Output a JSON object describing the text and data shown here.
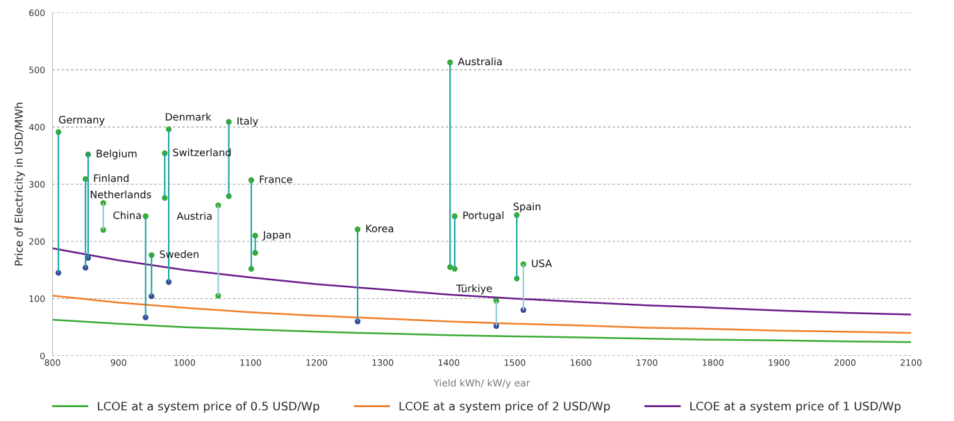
{
  "chart_data": {
    "type": "scatter",
    "xlabel": "Yield kWh/ kW/y ear",
    "ylabel": "Price of Electricity in USD/MWh",
    "xlim": [
      800,
      2100
    ],
    "xticks": [
      800,
      900,
      1000,
      1100,
      1200,
      1300,
      1400,
      1500,
      1600,
      1700,
      1800,
      1900,
      2000,
      2100
    ],
    "ylim": [
      0,
      600
    ],
    "yticks": [
      0,
      100,
      200,
      300,
      400,
      500,
      600
    ],
    "grid": "y",
    "legend": "bottom",
    "series": [
      {
        "name": "LCOE at a system price of 0.5 USD/Wp",
        "type": "line",
        "color": "#3aaa35",
        "x": [
          800,
          900,
          1000,
          1100,
          1200,
          1300,
          1400,
          1500,
          1600,
          1700,
          1800,
          1900,
          2000,
          2100
        ],
        "values": [
          63,
          56,
          50,
          46,
          42,
          39,
          36,
          34,
          32,
          30,
          28,
          27,
          25,
          24
        ]
      },
      {
        "name": "LCOE at a system price of 2 USD/Wp",
        "type": "line",
        "color": "#f07f2a",
        "x": [
          800,
          900,
          1000,
          1100,
          1200,
          1300,
          1400,
          1500,
          1600,
          1700,
          1800,
          1900,
          2000,
          2100
        ],
        "values": [
          105,
          93,
          84,
          76,
          70,
          65,
          60,
          56,
          53,
          49,
          47,
          44,
          42,
          40
        ]
      },
      {
        "name": "LCOE at a system price of 1 USD/Wp",
        "type": "line",
        "color": "#6a1b8a",
        "x": [
          800,
          900,
          1000,
          1100,
          1200,
          1300,
          1400,
          1500,
          1600,
          1700,
          1800,
          1900,
          2000,
          2100
        ],
        "values": [
          188,
          167,
          150,
          137,
          125,
          116,
          107,
          100,
          94,
          88,
          84,
          79,
          75,
          72
        ]
      },
      {
        "type": "bar",
        "x": [
          809,
          850,
          854,
          877,
          941,
          950,
          970,
          976,
          1051,
          1067,
          1101,
          1107,
          1262,
          1402,
          1409,
          1472,
          1503,
          1513
        ],
        "base": [
          145,
          154,
          171,
          220,
          67,
          104,
          276,
          129,
          105,
          279,
          152,
          180,
          60,
          155,
          152,
          52,
          135,
          80
        ],
        "values": [
          246,
          155,
          181,
          47,
          177,
          72,
          78,
          267,
          158,
          130,
          155,
          30,
          161,
          358,
          92,
          44,
          111,
          80
        ],
        "colors": [
          "#1aa5a0",
          "#1aa5a0",
          "#1aa5a0",
          "#8ccbe0",
          "#1aa5a0",
          "#1aa5a0",
          "#1aa5a0",
          "#1aa5a0",
          "#8ccbe0",
          "#1aa5a0",
          "#1aa5a0",
          "#1aa5a0",
          "#1aa5a0",
          "#1aa5a0",
          "#1aa5a0",
          "#8ccbe0",
          "#1aa5a0",
          "#8ccbe0"
        ]
      },
      {
        "marker": "circle",
        "x": [
          809,
          850,
          854,
          877,
          941,
          950,
          970,
          976,
          1051,
          1067,
          1101,
          1107,
          1262,
          1402,
          1409,
          1472,
          1503,
          1513
        ],
        "values": [
          391,
          309,
          352,
          267,
          244,
          176,
          354,
          396,
          263,
          409,
          307,
          210,
          221,
          513,
          244,
          96,
          246,
          160
        ],
        "colors": [
          "#3aaa35",
          "#3aaa35",
          "#3a9a55",
          "#3aaa35",
          "#3aaa35",
          "#3aaa35",
          "#3aaa35",
          "#3aaa35",
          "#3aaa35",
          "#3aaa35",
          "#3aaa35",
          "#3aaa35",
          "#3aaa35",
          "#3aaa35",
          "#3aaa35",
          "#3aaa35",
          "#3aaa35",
          "#3aaa35"
        ]
      },
      {
        "marker": "circle",
        "x": [
          809,
          850,
          854,
          877,
          941,
          950,
          970,
          976,
          1051,
          1067,
          1101,
          1107,
          1262,
          1402,
          1409,
          1472,
          1503,
          1513
        ],
        "values": [
          145,
          154,
          171,
          220,
          67,
          104,
          276,
          129,
          105,
          279,
          152,
          180,
          60,
          155,
          152,
          52,
          135,
          80
        ],
        "colors": [
          "#3b4a9a",
          "#3b4a9a",
          "#3b4a9a",
          "#3aaa35",
          "#3b4a9a",
          "#3b4a9a",
          "#3aaa35",
          "#3b4a9a",
          "#3aaa35",
          "#3aaa35",
          "#3aaa35",
          "#3aaa35",
          "#3b4a9a",
          "#3aaa35",
          "#3aaa35",
          "#3b4a9a",
          "#3aaa35",
          "#3b4a9a"
        ]
      }
    ],
    "annotations": [
      {
        "text": "Germany",
        "x": 809,
        "y": 391
      },
      {
        "text": "Finland",
        "x": 850,
        "y": 309
      },
      {
        "text": "Belgium",
        "x": 854,
        "y": 352
      },
      {
        "text": "Netherlands",
        "x": 877,
        "y": 267
      },
      {
        "text": "China",
        "x": 941,
        "y": 244
      },
      {
        "text": "Sweden",
        "x": 950,
        "y": 176
      },
      {
        "text": "Switzerland",
        "x": 970,
        "y": 354
      },
      {
        "text": "Denmark",
        "x": 976,
        "y": 396
      },
      {
        "text": "Austria",
        "x": 1051,
        "y": 263
      },
      {
        "text": "Italy",
        "x": 1067,
        "y": 409
      },
      {
        "text": "France",
        "x": 1101,
        "y": 307
      },
      {
        "text": "Japan",
        "x": 1107,
        "y": 210
      },
      {
        "text": "Korea",
        "x": 1262,
        "y": 221
      },
      {
        "text": "Australia",
        "x": 1402,
        "y": 513
      },
      {
        "text": "Portugal",
        "x": 1409,
        "y": 244
      },
      {
        "text": "Türkiye",
        "x": 1472,
        "y": 96
      },
      {
        "text": "Spain",
        "x": 1503,
        "y": 246
      },
      {
        "text": "USA",
        "x": 1513,
        "y": 160
      }
    ]
  }
}
